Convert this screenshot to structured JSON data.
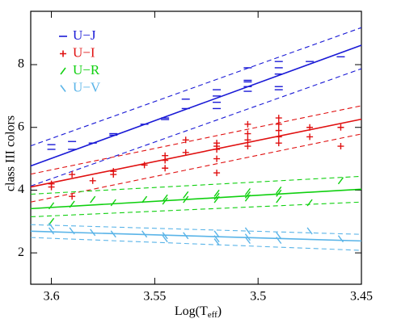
{
  "chart_data": {
    "type": "scatter",
    "x_label": [
      "Log(T",
      "eff",
      ")"
    ],
    "y_label": "class III colors",
    "xlim": [
      3.61,
      3.45
    ],
    "xticks": [
      3.6,
      3.55,
      3.5,
      3.45
    ],
    "ylim": [
      1,
      9.7
    ],
    "yticks": [
      2,
      4,
      6,
      8
    ],
    "legend": "upper-left",
    "series": [
      {
        "name": "U−J",
        "color": "#1a1ad6",
        "marker": "-",
        "x": [
          3.6,
          3.6,
          3.59,
          3.59,
          3.58,
          3.57,
          3.57,
          3.555,
          3.545,
          3.545,
          3.535,
          3.535,
          3.52,
          3.52,
          3.52,
          3.52,
          3.505,
          3.505,
          3.505,
          3.505,
          3.505,
          3.49,
          3.49,
          3.49,
          3.49,
          3.49,
          3.475,
          3.46
        ],
        "values": [
          5.3,
          5.45,
          5.3,
          5.55,
          5.5,
          5.8,
          5.75,
          6.1,
          6.3,
          6.25,
          6.6,
          6.9,
          6.6,
          6.8,
          7.0,
          7.2,
          7.3,
          7.45,
          7.5,
          7.9,
          7.15,
          7.3,
          7.7,
          7.9,
          8.1,
          7.2,
          8.1,
          8.25
        ],
        "fit": {
          "x": [
            3.61,
            3.45
          ],
          "values": [
            4.77,
            8.62
          ]
        },
        "upper": {
          "x": [
            3.61,
            3.45
          ],
          "values": [
            5.41,
            9.18
          ]
        },
        "lower": {
          "x": [
            3.61,
            3.45
          ],
          "values": [
            4.13,
            7.87
          ]
        }
      },
      {
        "name": "U−I",
        "color": "#e01010",
        "marker": "+",
        "x": [
          3.6,
          3.6,
          3.59,
          3.59,
          3.58,
          3.57,
          3.57,
          3.555,
          3.545,
          3.545,
          3.545,
          3.535,
          3.535,
          3.52,
          3.52,
          3.52,
          3.52,
          3.52,
          3.505,
          3.505,
          3.505,
          3.505,
          3.49,
          3.49,
          3.49,
          3.49,
          3.49,
          3.475,
          3.475,
          3.46,
          3.46
        ],
        "values": [
          4.1,
          4.2,
          4.5,
          3.8,
          4.3,
          4.5,
          4.6,
          4.8,
          4.95,
          5.1,
          4.7,
          5.2,
          5.6,
          5.3,
          5.4,
          5.5,
          5.0,
          4.55,
          5.4,
          5.6,
          5.8,
          6.1,
          5.5,
          5.7,
          5.9,
          6.1,
          6.3,
          5.7,
          6.0,
          5.4,
          6.0
        ],
        "fit": {
          "x": [
            3.61,
            3.45
          ],
          "values": [
            4.1,
            6.26
          ]
        },
        "upper": {
          "x": [
            3.61,
            3.45
          ],
          "values": [
            4.51,
            6.69
          ]
        },
        "lower": {
          "x": [
            3.61,
            3.45
          ],
          "values": [
            3.62,
            5.79
          ]
        }
      },
      {
        "name": "U−R",
        "color": "#10d010",
        "marker": "/",
        "x": [
          3.6,
          3.6,
          3.59,
          3.58,
          3.57,
          3.555,
          3.545,
          3.545,
          3.535,
          3.535,
          3.52,
          3.52,
          3.52,
          3.505,
          3.505,
          3.505,
          3.49,
          3.49,
          3.49,
          3.475,
          3.46
        ],
        "values": [
          3.5,
          3.0,
          3.55,
          3.7,
          3.6,
          3.7,
          3.65,
          3.75,
          3.7,
          3.85,
          3.7,
          3.8,
          3.9,
          3.75,
          3.85,
          3.95,
          3.7,
          3.9,
          4.0,
          3.6,
          4.3
        ],
        "fit": {
          "x": [
            3.61,
            3.45
          ],
          "values": [
            3.41,
            4.03
          ]
        },
        "upper": {
          "x": [
            3.61,
            3.45
          ],
          "values": [
            3.87,
            4.44
          ]
        },
        "lower": {
          "x": [
            3.61,
            3.45
          ],
          "values": [
            3.15,
            3.62
          ]
        }
      },
      {
        "name": "U−V",
        "color": "#5ab4e8",
        "marker": "\\",
        "x": [
          3.6,
          3.6,
          3.59,
          3.58,
          3.57,
          3.555,
          3.545,
          3.545,
          3.535,
          3.52,
          3.52,
          3.52,
          3.505,
          3.505,
          3.505,
          3.49,
          3.49,
          3.475,
          3.46
        ],
        "values": [
          2.85,
          2.7,
          2.7,
          2.65,
          2.6,
          2.6,
          2.55,
          2.45,
          2.55,
          2.6,
          2.45,
          2.35,
          2.5,
          2.4,
          2.7,
          2.4,
          2.55,
          2.7,
          2.45
        ],
        "fit": {
          "x": [
            3.61,
            3.45
          ],
          "values": [
            2.69,
            2.38
          ]
        },
        "upper": {
          "x": [
            3.61,
            3.45
          ],
          "values": [
            2.9,
            2.59
          ]
        },
        "lower": {
          "x": [
            3.61,
            3.45
          ],
          "values": [
            2.49,
            2.08
          ]
        }
      }
    ]
  }
}
